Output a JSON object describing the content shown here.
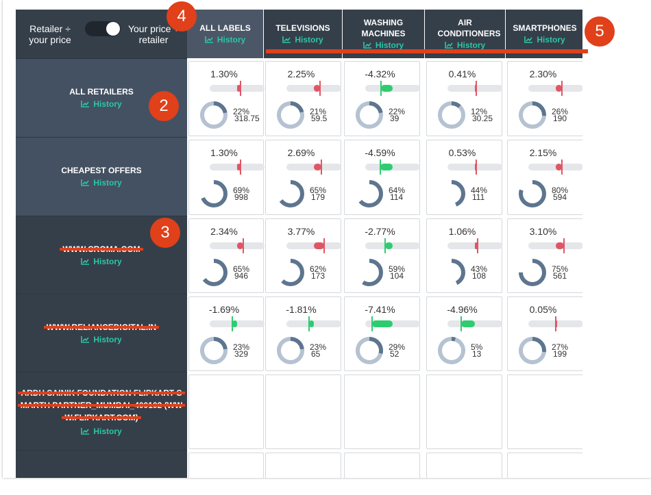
{
  "header": {
    "toggle_left_label": "Retailer ÷ your price",
    "toggle_right_label": "Your price ÷ retailer",
    "history_label": "History",
    "columns": [
      {
        "label": "ALL LABELS"
      },
      {
        "label": "TELEVISIONS"
      },
      {
        "label": "WASHING MACHINES"
      },
      {
        "label": "AIR CONDITIONERS"
      },
      {
        "label": "SMARTPHONES"
      }
    ]
  },
  "rows": [
    {
      "name": "ALL RETAILERS",
      "history": "History",
      "cells": [
        {
          "pct": "1.30%",
          "share": "22%",
          "count": "318.75"
        },
        {
          "pct": "2.25%",
          "share": "21%",
          "count": "59.5"
        },
        {
          "pct": "-4.32%",
          "share": "22%",
          "count": "39"
        },
        {
          "pct": "0.41%",
          "share": "12%",
          "count": "30.25"
        },
        {
          "pct": "2.30%",
          "share": "26%",
          "count": "190"
        }
      ]
    },
    {
      "name": "CHEAPEST OFFERS",
      "history": "History",
      "cells": [
        {
          "pct": "1.30%",
          "share": "69%",
          "count": "998"
        },
        {
          "pct": "2.69%",
          "share": "65%",
          "count": "179"
        },
        {
          "pct": "-4.59%",
          "share": "64%",
          "count": "114"
        },
        {
          "pct": "0.53%",
          "share": "44%",
          "count": "111"
        },
        {
          "pct": "2.15%",
          "share": "80%",
          "count": "594"
        }
      ]
    },
    {
      "name": "WWW.CROMA.COM",
      "history": "History",
      "cells": [
        {
          "pct": "2.34%",
          "share": "65%",
          "count": "946"
        },
        {
          "pct": "3.77%",
          "share": "62%",
          "count": "173"
        },
        {
          "pct": "-2.77%",
          "share": "59%",
          "count": "104"
        },
        {
          "pct": "1.06%",
          "share": "43%",
          "count": "108"
        },
        {
          "pct": "3.10%",
          "share": "75%",
          "count": "561"
        }
      ]
    },
    {
      "name": "WWW.RELIANCEDIGITAL.IN",
      "history": "History",
      "cells": [
        {
          "pct": "-1.69%",
          "share": "23%",
          "count": "329"
        },
        {
          "pct": "-1.81%",
          "share": "23%",
          "count": "65"
        },
        {
          "pct": "-7.41%",
          "share": "29%",
          "count": "52"
        },
        {
          "pct": "-4.96%",
          "share": "5%",
          "count": "13"
        },
        {
          "pct": "0.05%",
          "share": "27%",
          "count": "199"
        }
      ]
    },
    {
      "name_lines": [
        "ARDH SAINIK FOUNDATION FLIPKART S",
        "MARTH PARTNER_MUMBAI_400102 (WW",
        "W.FLIPKART.COM)"
      ],
      "history": "History",
      "cells": []
    },
    {
      "name": "",
      "history": "",
      "cells": []
    }
  ],
  "callouts": [
    "4",
    "2",
    "3",
    "5"
  ],
  "colors": {
    "positive": "#e05565",
    "negative": "#2ecc71",
    "history": "#2bc6a5",
    "donut": "#5d758f",
    "donut_track": "#b5c2d1"
  }
}
